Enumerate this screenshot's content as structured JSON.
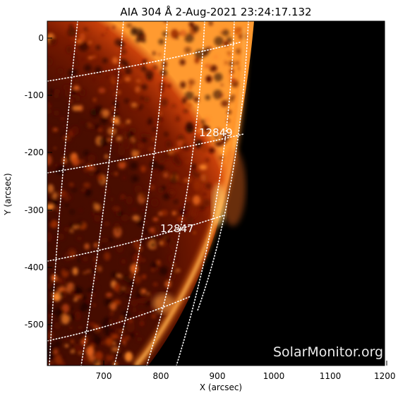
{
  "title": "AIA 304 Å  2-Aug-2021 23:24:17.132",
  "x_axis": {
    "label": "X (arcsec)",
    "ticks": [
      "700",
      "800",
      "900",
      "1000",
      "1100",
      "1200"
    ]
  },
  "y_axis": {
    "label": "Y (arcsec)",
    "ticks": [
      "0",
      "-100",
      "-200",
      "-300",
      "-400",
      "-500"
    ]
  },
  "regions": [
    {
      "label": "12849"
    },
    {
      "label": "12847"
    }
  ],
  "watermark": "SolarMonitor.org",
  "colors": {
    "background": "#000000",
    "disk_dark": "#2a0600",
    "disk_mid": "#8a1c00",
    "disk_bright": "#ff7a1a",
    "limb_bright": "#ffd070",
    "grid": "#ffffff"
  }
}
